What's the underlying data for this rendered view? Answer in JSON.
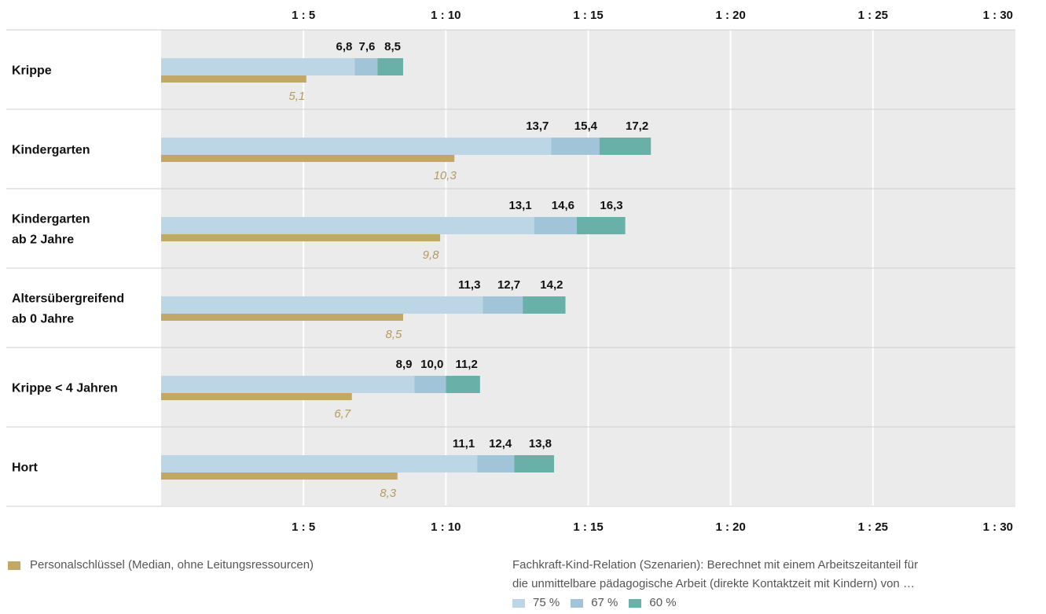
{
  "chart_data": {
    "type": "bar",
    "orientation": "horizontal",
    "x_tick_labels": [
      "1 : 5",
      "1 : 10",
      "1 : 15",
      "1 : 20",
      "1 : 25",
      "1 : 30"
    ],
    "x_ticks": [
      5,
      10,
      15,
      20,
      25,
      30
    ],
    "xlim": [
      0,
      30
    ],
    "grid": true,
    "categories": [
      {
        "label": [
          "Krippe"
        ],
        "scenarios": [
          6.8,
          7.6,
          8.5
        ],
        "scenario_labels": [
          "6,8",
          "7,6",
          "8,5"
        ],
        "median": 5.1,
        "median_label": "5,1"
      },
      {
        "label": [
          "Kindergarten"
        ],
        "scenarios": [
          13.7,
          15.4,
          17.2
        ],
        "scenario_labels": [
          "13,7",
          "15,4",
          "17,2"
        ],
        "median": 10.3,
        "median_label": "10,3"
      },
      {
        "label": [
          "Kindergarten",
          "ab 2 Jahre"
        ],
        "scenarios": [
          13.1,
          14.6,
          16.3
        ],
        "scenario_labels": [
          "13,1",
          "14,6",
          "16,3"
        ],
        "median": 9.8,
        "median_label": "9,8"
      },
      {
        "label": [
          "Altersübergreifend",
          "ab 0 Jahre"
        ],
        "scenarios": [
          11.3,
          12.7,
          14.2
        ],
        "scenario_labels": [
          "11,3",
          "12,7",
          "14,2"
        ],
        "median": 8.5,
        "median_label": "8,5"
      },
      {
        "label": [
          "Krippe < 4 Jahren"
        ],
        "scenarios": [
          8.9,
          10.0,
          11.2
        ],
        "scenario_labels": [
          "8,9",
          "10,0",
          "11,2"
        ],
        "median": 6.7,
        "median_label": "6,7"
      },
      {
        "label": [
          "Hort"
        ],
        "scenarios": [
          11.1,
          12.4,
          13.8
        ],
        "scenario_labels": [
          "11,1",
          "12,4",
          "13,8"
        ],
        "median": 8.3,
        "median_label": "8,3"
      }
    ],
    "series": [
      {
        "name": "75 %",
        "color": "#bdd6e6"
      },
      {
        "name": "67 %",
        "color": "#a1c4d9"
      },
      {
        "name": "60 %",
        "color": "#68b0a8"
      },
      {
        "name": "Personalschlüssel (Median, ohne Leitungsressourcen)",
        "color": "#c2a866"
      }
    ],
    "plot_background": "#ebebeb"
  },
  "legend": {
    "median_label": "Personalschlüssel (Median, ohne Leitungsressourcen)",
    "scenario_title_line1": "Fachkraft-Kind-Relation (Szenarien): Berechnet mit einem Arbeitszeitanteil für",
    "scenario_title_line2": "die unmittelbare pädagogische Arbeit  (direkte Kontaktzeit mit Kindern) von …",
    "scenario_items": [
      "75 %",
      "67 %",
      "60 %"
    ]
  }
}
